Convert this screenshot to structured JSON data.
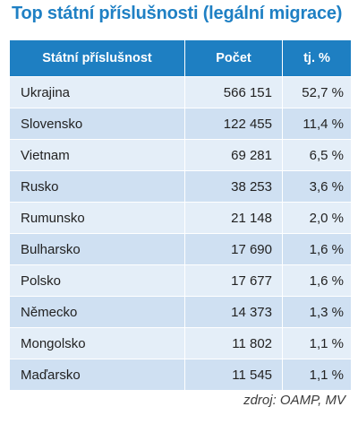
{
  "title": "Top státní příslušnosti (legální migrace)",
  "table": {
    "headers": [
      "Státní příslušnost",
      "Počet",
      "tj. %"
    ],
    "rows": [
      [
        "Ukrajina",
        "566 151",
        "52,7 %"
      ],
      [
        "Slovensko",
        "122 455",
        "11,4 %"
      ],
      [
        "Vietnam",
        "69 281",
        "6,5 %"
      ],
      [
        "Rusko",
        "38 253",
        "3,6 %"
      ],
      [
        "Rumunsko",
        "21 148",
        "2,0 %"
      ],
      [
        "Bulharsko",
        "17 690",
        "1,6 %"
      ],
      [
        "Polsko",
        "17 677",
        "1,6 %"
      ],
      [
        "Německo",
        "14 373",
        "1,3 %"
      ],
      [
        "Mongolsko",
        "11 802",
        "1,1 %"
      ],
      [
        "Maďarsko",
        "11 545",
        "1,1 %"
      ]
    ]
  },
  "source": "zdroj: OAMP, MV",
  "colors": {
    "title": "#1f80c4",
    "header_bg": "#1e7fc2",
    "row_light": "#e4eef8",
    "row_dark": "#cfe0f2"
  }
}
